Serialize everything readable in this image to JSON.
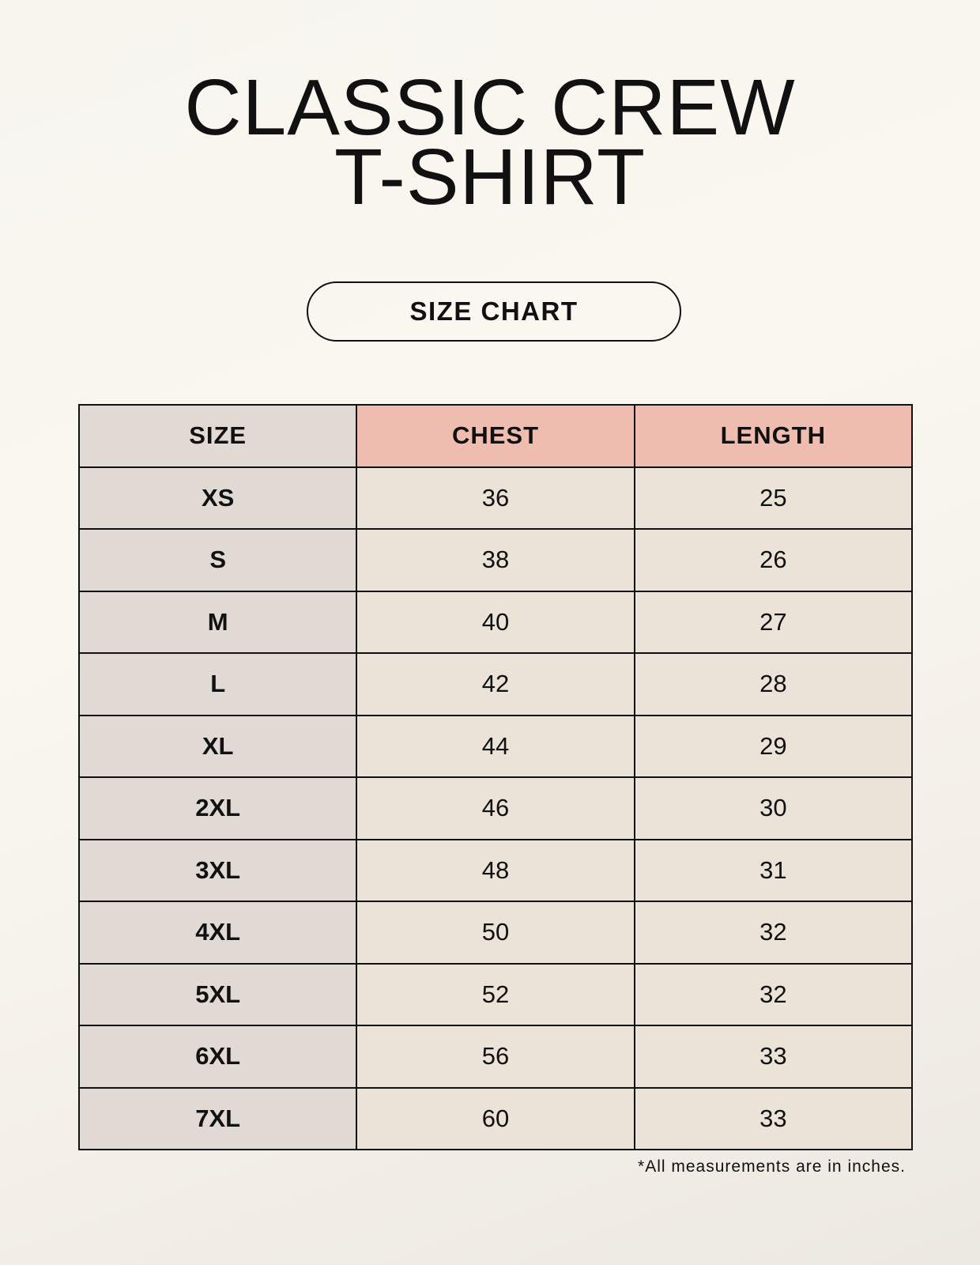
{
  "title_line1": "CLASSIC CREW",
  "title_line2": "T-SHIRT",
  "badge": "SIZE CHART",
  "table": {
    "headers": [
      "SIZE",
      "CHEST",
      "LENGTH"
    ],
    "rows": [
      [
        "XS",
        "36",
        "25"
      ],
      [
        "S",
        "38",
        "26"
      ],
      [
        "M",
        "40",
        "27"
      ],
      [
        "L",
        "42",
        "28"
      ],
      [
        "XL",
        "44",
        "29"
      ],
      [
        "2XL",
        "46",
        "30"
      ],
      [
        "3XL",
        "48",
        "31"
      ],
      [
        "4XL",
        "50",
        "32"
      ],
      [
        "5XL",
        "52",
        "32"
      ],
      [
        "6XL",
        "56",
        "33"
      ],
      [
        "7XL",
        "60",
        "33"
      ]
    ]
  },
  "footnote": "*All measurements are in inches.",
  "colors": {
    "header_accent": "#efbdb0",
    "size_column": "#e1d9d3",
    "value_cells": "#ebe3d8"
  }
}
